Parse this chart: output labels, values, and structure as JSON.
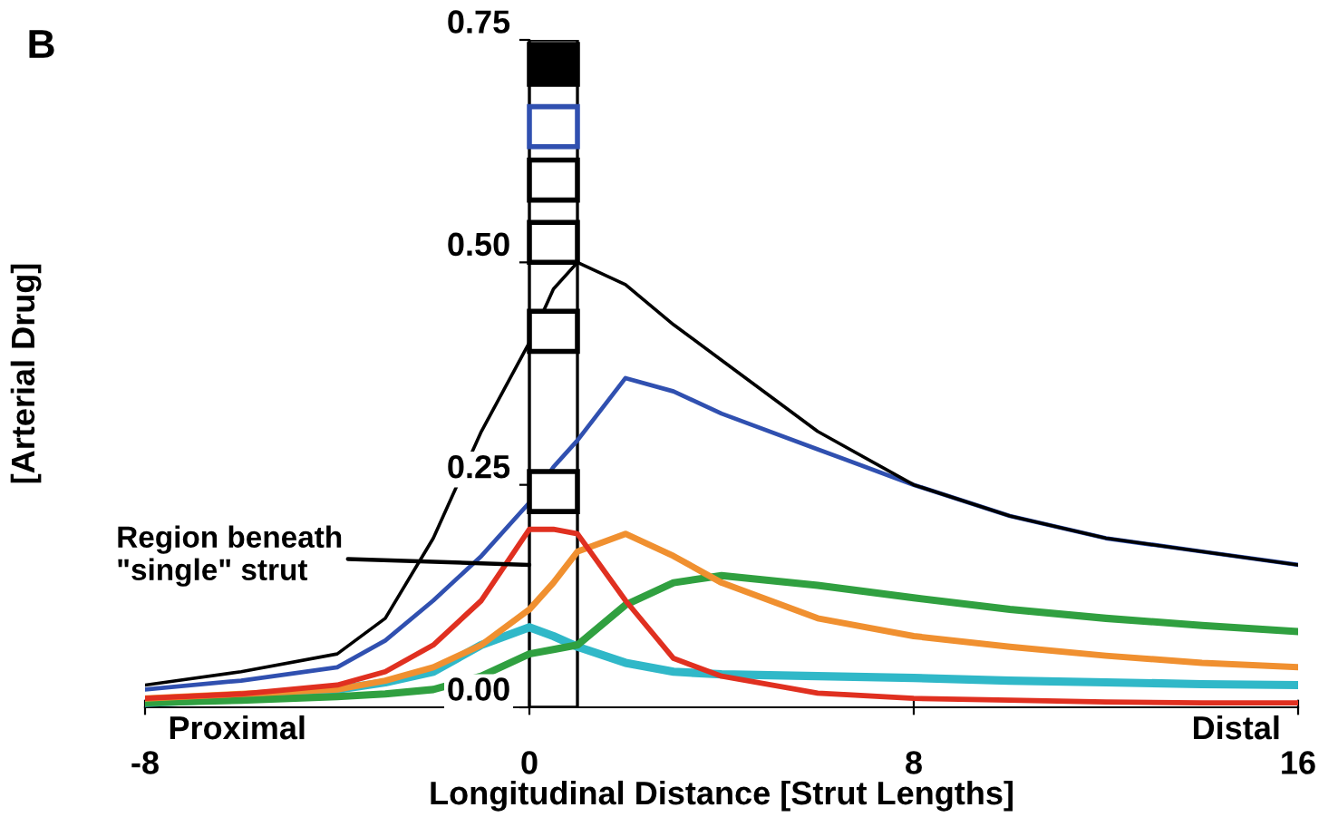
{
  "chart_data": {
    "type": "line",
    "xlabel": "Longitudinal Distance [Strut Lengths]",
    "ylabel": "[Arterial Drug]",
    "xlim": [
      -8,
      16
    ],
    "xticks": [
      -8,
      0,
      8,
      16
    ],
    "ylim": [
      0,
      0.75
    ],
    "yticks": [
      {
        "value": 0,
        "label": "0.00"
      },
      {
        "value": 0.25,
        "label": "0.25"
      },
      {
        "value": 0.5,
        "label": "0.50"
      },
      {
        "value": 0.75,
        "label": "0.75"
      }
    ],
    "x": [
      -8,
      -6,
      -4,
      -3,
      -2,
      -1,
      0,
      0.5,
      1,
      2,
      3,
      4,
      6,
      8,
      10,
      12,
      14,
      16
    ],
    "series": [
      {
        "color": "#000000",
        "values": [
          0.025,
          0.04,
          0.06,
          0.1,
          0.19,
          0.31,
          0.41,
          0.47,
          0.5,
          0.475,
          0.43,
          0.39,
          0.31,
          0.25,
          0.215,
          0.19,
          0.175,
          0.16
        ]
      },
      {
        "color": "#3050b0",
        "values": [
          0.02,
          0.03,
          0.045,
          0.075,
          0.12,
          0.17,
          0.23,
          0.27,
          0.3,
          0.37,
          0.355,
          0.33,
          0.29,
          0.25,
          0.215,
          0.19,
          0.175,
          0.16
        ]
      },
      {
        "color": "#e03020",
        "values": [
          0.01,
          0.015,
          0.025,
          0.04,
          0.07,
          0.12,
          0.2,
          0.2,
          0.195,
          0.12,
          0.055,
          0.035,
          0.016,
          0.01,
          0.008,
          0.006,
          0.005,
          0.005
        ]
      },
      {
        "color": "#f09030",
        "values": [
          0.01,
          0.015,
          0.02,
          0.03,
          0.045,
          0.07,
          0.11,
          0.14,
          0.175,
          0.195,
          0.17,
          0.14,
          0.1,
          0.08,
          0.068,
          0.058,
          0.05,
          0.045
        ]
      },
      {
        "color": "#30a040",
        "values": [
          0.005,
          0.008,
          0.012,
          0.015,
          0.02,
          0.035,
          0.06,
          0.065,
          0.07,
          0.115,
          0.14,
          0.148,
          0.137,
          0.123,
          0.11,
          0.1,
          0.092,
          0.085
        ]
      },
      {
        "color": "#30b8c8",
        "values": [
          0.005,
          0.01,
          0.02,
          0.028,
          0.04,
          0.07,
          0.09,
          0.08,
          0.068,
          0.05,
          0.04,
          0.037,
          0.035,
          0.033,
          0.03,
          0.028,
          0.026,
          0.025
        ]
      }
    ],
    "bands": [
      {
        "axis": "x",
        "from": 0,
        "to": 1,
        "label": "Region beneath\n\"single\" strut",
        "color": "#000000"
      }
    ],
    "annotations": [
      "B",
      "Proximal",
      "Distal"
    ],
    "grid": false,
    "legend": false,
    "marker": "none",
    "line_style": "solid"
  }
}
